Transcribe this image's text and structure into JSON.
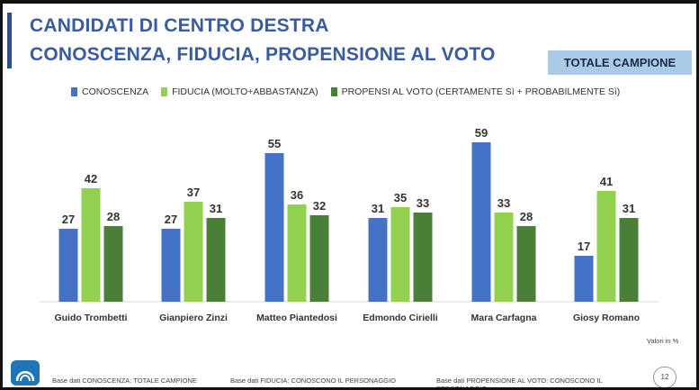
{
  "header": {
    "title_line1": "CANDIDATI DI CENTRO DESTRA",
    "title_line2": "CONOSCENZA, FIDUCIA, PROPENSIONE AL VOTO",
    "badge": "TOTALE CAMPIONE"
  },
  "colors": {
    "conoscenza": "#4472c4",
    "fiducia": "#92d050",
    "propensi": "#4a7f38",
    "title": "#3a5ba0",
    "badge_bg": "#aacbe8"
  },
  "chart_data": {
    "type": "bar",
    "categories": [
      "Guido Trombetti",
      "Gianpiero Zinzi",
      "Matteo Piantedosi",
      "Edmondo Cirielli",
      "Mara Carfagna",
      "Giosy Romano"
    ],
    "series": [
      {
        "name": "CONOSCENZA",
        "values": [
          27,
          27,
          55,
          31,
          59,
          17
        ]
      },
      {
        "name": "FIDUCIA (MOLTO+ABBASTANZA)",
        "values": [
          42,
          37,
          36,
          35,
          33,
          41
        ]
      },
      {
        "name": "PROPENSI AL VOTO (CERTAMENTE Sì + PROBABILMENTE Sì)",
        "values": [
          28,
          31,
          32,
          33,
          28,
          31
        ]
      }
    ],
    "ylim": [
      0,
      60
    ],
    "grid": false,
    "legend": "top"
  },
  "footer": {
    "units": "Valori in %",
    "note1": "Base dati CONOSCENZA: TOTALE CAMPIONE",
    "note2": "Base dati FIDUCIA: CONOSCONO IL PERSONAGGIO",
    "note3": "Base dati PROPENSIONE AL VOTO: CONOSCONO IL PERSONAGGIO",
    "page_number": "12"
  }
}
